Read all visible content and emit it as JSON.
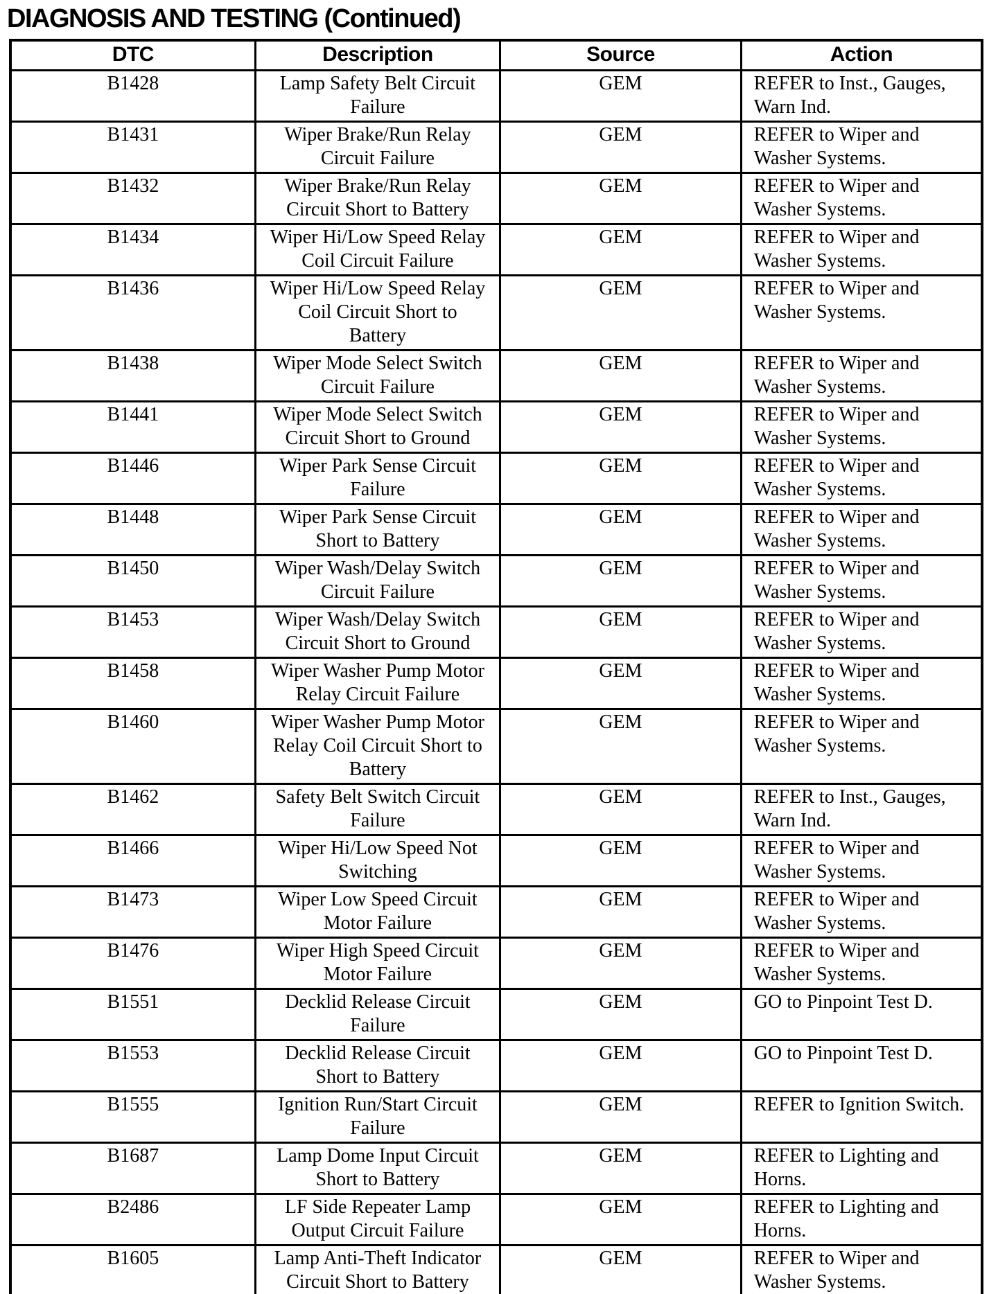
{
  "page": {
    "title": "DIAGNOSIS AND TESTING (Continued)"
  },
  "table": {
    "headers": {
      "dtc": "DTC",
      "description": "Description",
      "source": "Source",
      "action": "Action"
    },
    "rows": [
      {
        "dtc": "B1428",
        "description": "Lamp Safety Belt Circuit\nFailure",
        "source": "GEM",
        "action": "REFER to Inst., Gauges,\nWarn Ind."
      },
      {
        "dtc": "B1431",
        "description": "Wiper Brake/Run Relay\nCircuit Failure",
        "source": "GEM",
        "action": "REFER to Wiper and\nWasher Systems."
      },
      {
        "dtc": "B1432",
        "description": "Wiper Brake/Run Relay\nCircuit Short to Battery",
        "source": "GEM",
        "action": "REFER to Wiper and\nWasher Systems."
      },
      {
        "dtc": "B1434",
        "description": "Wiper Hi/Low Speed Relay\nCoil Circuit Failure",
        "source": "GEM",
        "action": "REFER to Wiper and\nWasher Systems."
      },
      {
        "dtc": "B1436",
        "description": "Wiper Hi/Low Speed Relay\nCoil Circuit Short to\nBattery",
        "source": "GEM",
        "action": "REFER to Wiper and\nWasher Systems."
      },
      {
        "dtc": "B1438",
        "description": "Wiper Mode Select Switch\nCircuit Failure",
        "source": "GEM",
        "action": "REFER to Wiper and\nWasher Systems."
      },
      {
        "dtc": "B1441",
        "description": "Wiper Mode Select Switch\nCircuit Short to Ground",
        "source": "GEM",
        "action": "REFER to Wiper and\nWasher Systems."
      },
      {
        "dtc": "B1446",
        "description": "Wiper Park Sense Circuit\nFailure",
        "source": "GEM",
        "action": "REFER to Wiper and\nWasher Systems."
      },
      {
        "dtc": "B1448",
        "description": "Wiper Park Sense Circuit\nShort to Battery",
        "source": "GEM",
        "action": "REFER to Wiper and\nWasher Systems."
      },
      {
        "dtc": "B1450",
        "description": "Wiper Wash/Delay Switch\nCircuit Failure",
        "source": "GEM",
        "action": "REFER to Wiper and\nWasher Systems."
      },
      {
        "dtc": "B1453",
        "description": "Wiper Wash/Delay Switch\nCircuit Short to Ground",
        "source": "GEM",
        "action": "REFER to Wiper and\nWasher Systems."
      },
      {
        "dtc": "B1458",
        "description": "Wiper Washer Pump Motor\nRelay Circuit Failure",
        "source": "GEM",
        "action": "REFER to Wiper and\nWasher Systems."
      },
      {
        "dtc": "B1460",
        "description": "Wiper Washer Pump Motor\nRelay Coil Circuit Short to\nBattery",
        "source": "GEM",
        "action": "REFER to Wiper and\nWasher Systems."
      },
      {
        "dtc": "B1462",
        "description": "Safety Belt Switch Circuit\nFailure",
        "source": "GEM",
        "action": "REFER to Inst., Gauges,\nWarn Ind."
      },
      {
        "dtc": "B1466",
        "description": "Wiper Hi/Low Speed Not\nSwitching",
        "source": "GEM",
        "action": "REFER to Wiper and\nWasher Systems."
      },
      {
        "dtc": "B1473",
        "description": "Wiper Low Speed Circuit\nMotor Failure",
        "source": "GEM",
        "action": "REFER to Wiper and\nWasher Systems."
      },
      {
        "dtc": "B1476",
        "description": "Wiper High Speed Circuit\nMotor Failure",
        "source": "GEM",
        "action": "REFER to Wiper and\nWasher Systems."
      },
      {
        "dtc": "B1551",
        "description": "Decklid Release Circuit\nFailure",
        "source": "GEM",
        "action": "GO to Pinpoint Test D."
      },
      {
        "dtc": "B1553",
        "description": "Decklid Release Circuit\nShort to Battery",
        "source": "GEM",
        "action": "GO to Pinpoint Test D."
      },
      {
        "dtc": "B1555",
        "description": "Ignition Run/Start Circuit\nFailure",
        "source": "GEM",
        "action": "REFER to Ignition Switch."
      },
      {
        "dtc": "B1687",
        "description": "Lamp Dome Input Circuit\nShort to Battery",
        "source": "GEM",
        "action": "REFER to Lighting and\nHorns."
      },
      {
        "dtc": "B2486",
        "description": "LF Side Repeater Lamp\nOutput Circuit Failure",
        "source": "GEM",
        "action": "REFER to Lighting and\nHorns."
      },
      {
        "dtc": "B1605",
        "description": "Lamp Anti-Theft Indicator\nCircuit Short to Battery",
        "source": "GEM",
        "action": "REFER to Wiper and\nWasher Systems."
      }
    ]
  }
}
